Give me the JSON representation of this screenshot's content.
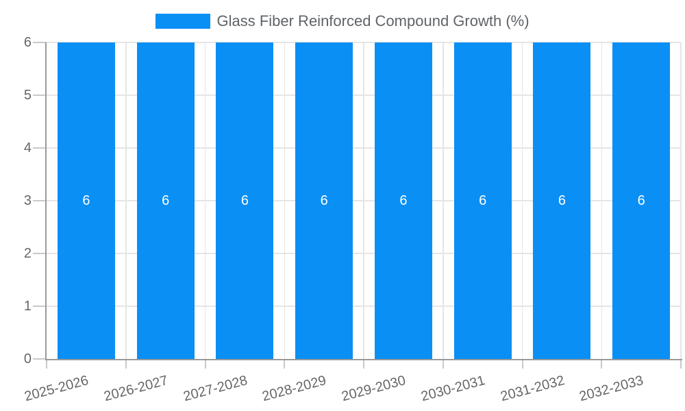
{
  "chart_data": {
    "type": "bar",
    "title": "Glass Fiber Reinforced Compound Growth (%)",
    "categories": [
      "2025-2026",
      "2026-2027",
      "2027-2028",
      "2028-2029",
      "2029-2030",
      "2030-2031",
      "2031-2032",
      "2032-2033"
    ],
    "series": [
      {
        "name": "Glass Fiber Reinforced Compound Growth (%)",
        "color": "#0a8ff5",
        "values": [
          6,
          6,
          6,
          6,
          6,
          6,
          6,
          6
        ]
      }
    ],
    "data_labels": {
      "show": true,
      "color": "#ffffff",
      "position": "center"
    },
    "xlabel": "",
    "ylabel": "",
    "ylim": [
      0,
      6
    ],
    "yticks": [
      0,
      1,
      2,
      3,
      4,
      5,
      6
    ],
    "grid": {
      "horizontal": true,
      "vertical": true,
      "color": "#e5e5e5"
    },
    "legend_position": "top",
    "x_tick_rotation": -15,
    "colors": {
      "background": "#ffffff",
      "axis": "#999999",
      "tick_mark": "#c9c9c9",
      "tick_text": "#666666",
      "legend_text": "#5f6368"
    }
  }
}
